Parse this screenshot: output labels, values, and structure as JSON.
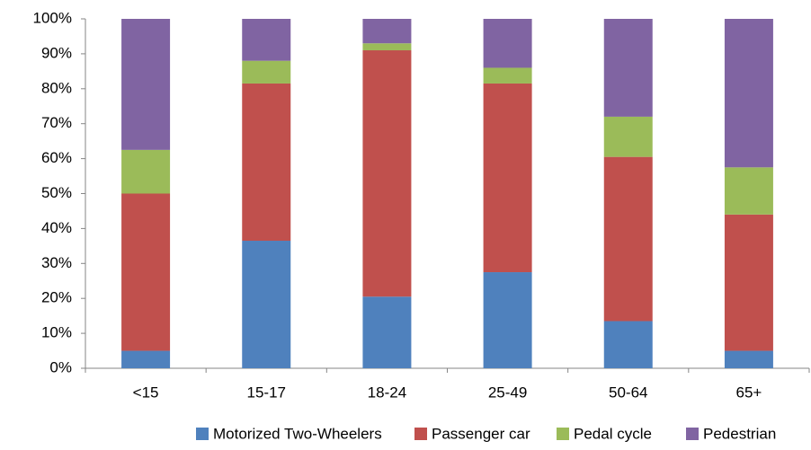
{
  "chart_data": {
    "type": "stacked_bar",
    "categories": [
      "<15",
      "15-17",
      "18-24",
      "25-49",
      "50-64",
      "65+"
    ],
    "series": [
      {
        "name": "Motorized Two-Wheelers",
        "color": "#4f81bd",
        "values": [
          5,
          36.5,
          20.5,
          27.5,
          13.5,
          5
        ]
      },
      {
        "name": "Passenger car",
        "color": "#c0504d",
        "values": [
          45,
          45,
          70.5,
          54,
          47,
          39
        ]
      },
      {
        "name": "Pedal cycle",
        "color": "#9bbb59",
        "values": [
          12.5,
          6.5,
          2,
          4.5,
          11.5,
          13.5
        ]
      },
      {
        "name": "Pedestrian",
        "color": "#8064a2",
        "values": [
          37.5,
          12,
          7,
          14,
          28,
          42.5
        ]
      }
    ],
    "ylim": [
      0,
      100
    ],
    "yticks": [
      {
        "value": 0,
        "label": "0%"
      },
      {
        "value": 10,
        "label": "10%"
      },
      {
        "value": 20,
        "label": "20%"
      },
      {
        "value": 30,
        "label": "30%"
      },
      {
        "value": 40,
        "label": "40%"
      },
      {
        "value": 50,
        "label": "50%"
      },
      {
        "value": 60,
        "label": "60%"
      },
      {
        "value": 70,
        "label": "70%"
      },
      {
        "value": 80,
        "label": "80%"
      },
      {
        "value": 90,
        "label": "90%"
      },
      {
        "value": 100,
        "label": "100%"
      }
    ],
    "legend": "bottom"
  }
}
